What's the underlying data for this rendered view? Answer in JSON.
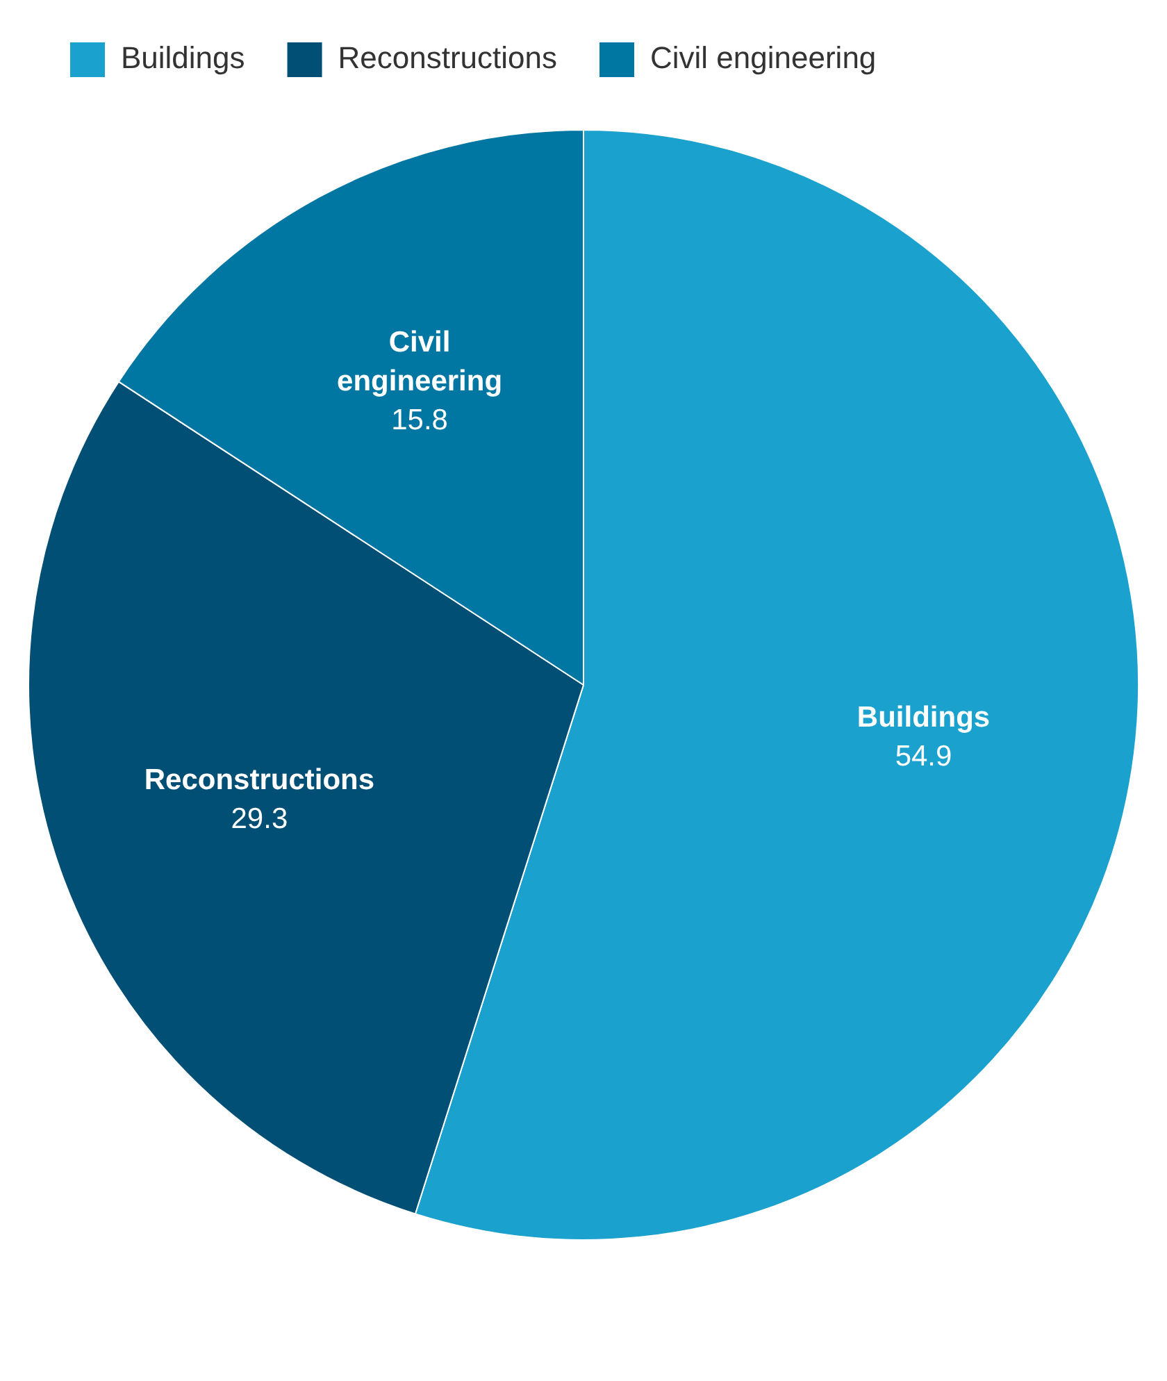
{
  "chart_data": {
    "type": "pie",
    "categories": [
      "Buildings",
      "Reconstructions",
      "Civil engineering"
    ],
    "values": [
      54.9,
      29.3,
      15.8
    ],
    "colors": [
      "#1aa1cd",
      "#024f75",
      "#0076a3"
    ],
    "data_labels": true,
    "legend": "top left"
  }
}
